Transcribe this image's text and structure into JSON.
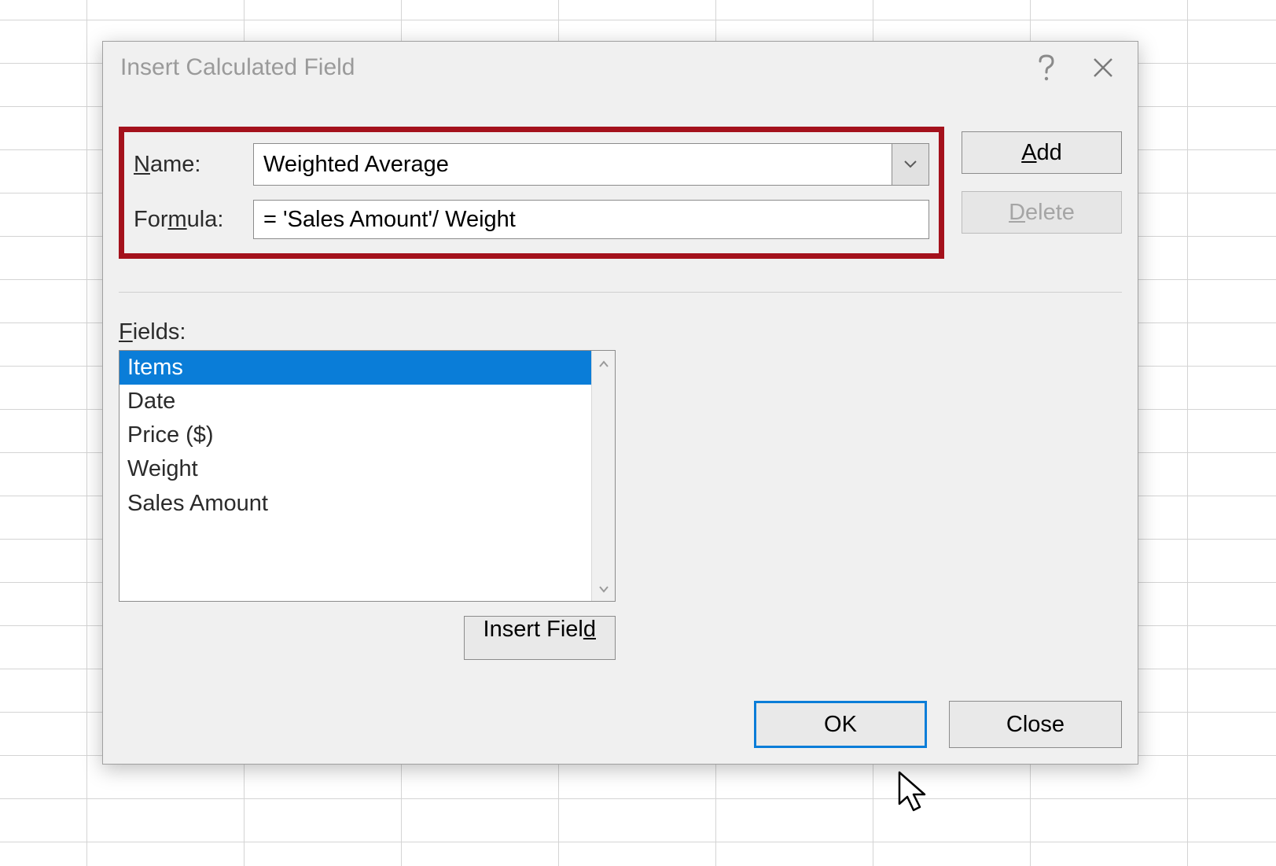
{
  "colors": {
    "dialog_bg": "#f0f0f0",
    "border": "#8c8c8c",
    "highlight_border": "#a4111c",
    "selection_bg": "#0a7dd8",
    "grid_line": "#d4d4d4",
    "title_text": "#9a9a9a",
    "text": "#2b2b2b",
    "disabled_text": "#a5a5a5"
  },
  "titlebar": {
    "title": "Insert Calculated Field"
  },
  "form": {
    "name_label_pre": "N",
    "name_label_post": "ame:",
    "name_value": "Weighted Average",
    "formula_label_pre": "For",
    "formula_label_mn": "m",
    "formula_label_post": "ula:",
    "formula_value": "= 'Sales Amount'/ Weight"
  },
  "buttons": {
    "add_mn": "A",
    "add_post": "dd",
    "delete_mn": "D",
    "delete_post": "elete",
    "insert_field_pre": "Insert Fiel",
    "insert_field_mn": "d",
    "ok": "OK",
    "close": "Close"
  },
  "fields": {
    "label_mn": "F",
    "label_post": "ields:",
    "items": [
      "Items",
      "Date",
      "Price ($)",
      "Weight",
      "Sales Amount"
    ],
    "selected_index": 0
  }
}
